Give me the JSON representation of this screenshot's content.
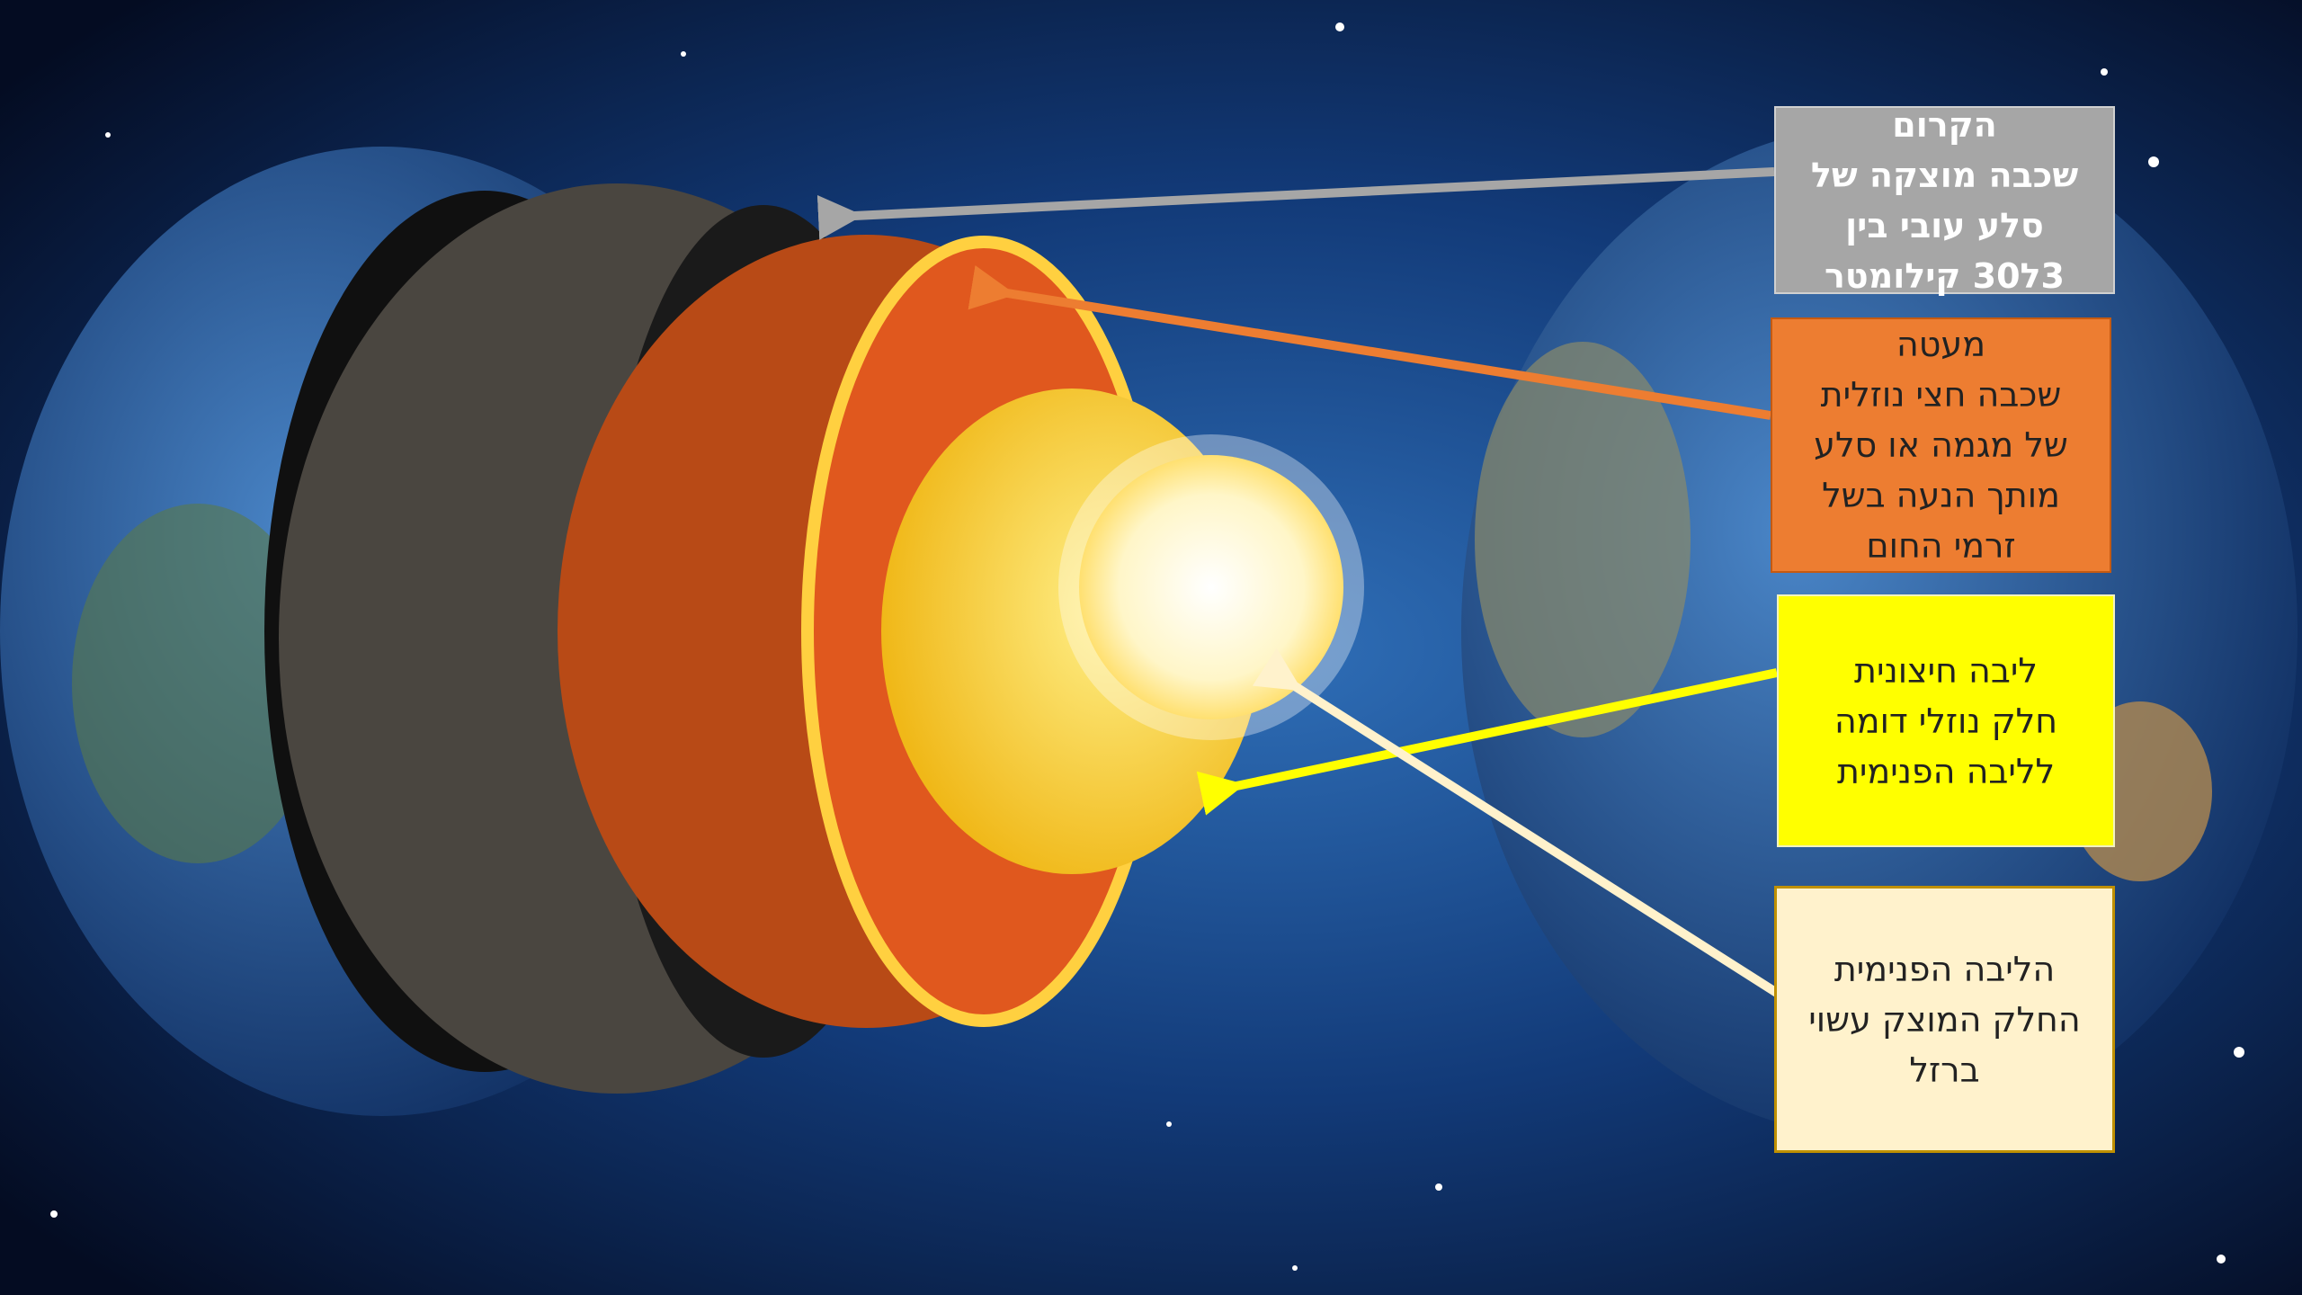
{
  "labels": [
    {
      "lines": [
        "הקרום",
        "שכבה מוצקה של",
        "סלע עובי בין",
        "3ל30 קילומטר"
      ]
    },
    {
      "lines": [
        "מעטה",
        "שכבה חצי נוזלית",
        "של מגמה או סלע",
        "מותך הנעה בשל",
        "זרמי החום"
      ]
    },
    {
      "lines": [
        "ליבה חיצונית",
        "חלק נוזלי דומה",
        "לליבה הפנימית"
      ]
    },
    {
      "lines": [
        "הליבה הפנימית",
        "החלק המוצק עשוי",
        "ברזל"
      ]
    }
  ]
}
